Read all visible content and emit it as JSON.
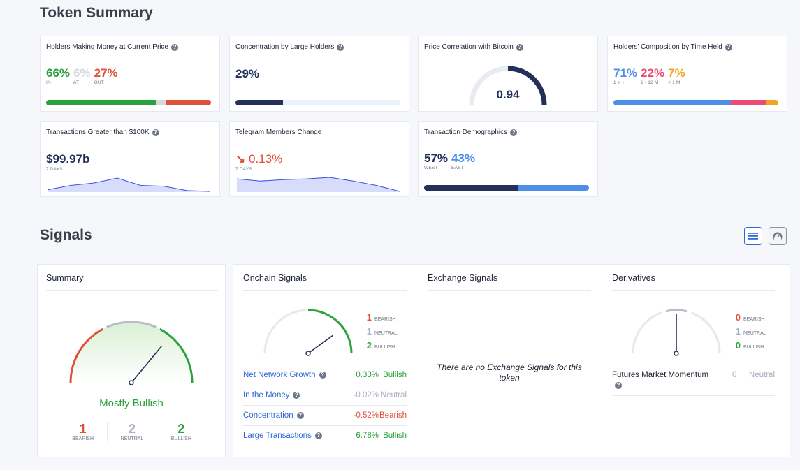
{
  "token_summary": {
    "heading": "Token Summary",
    "holders_money": {
      "title": "Holders Making Money at Current Price",
      "in_value": "66%",
      "in_label": "IN",
      "at_value": "6%",
      "at_label": "AT",
      "out_value": "27%",
      "out_label": "OUT",
      "bar": [
        0.66,
        0.06,
        0.27
      ]
    },
    "concentration": {
      "title": "Concentration by Large Holders",
      "value": "29%",
      "fill": 0.29
    },
    "btc_correlation": {
      "title": "Price Correlation with Bitcoin",
      "value": "0.94",
      "fill": 0.94
    },
    "composition": {
      "title": "Holders' Composition by Time Held",
      "long_value": "71%",
      "long_label": "1 Y +",
      "mid_value": "22%",
      "mid_label": "1 - 12 M",
      "short_value": "7%",
      "short_label": "< 1 M",
      "bar": [
        0.71,
        0.22,
        0.07
      ]
    },
    "large_tx": {
      "title": "Transactions Greater than $100K",
      "value": "$99.97b",
      "period": "7 DAYS",
      "trend": [
        0.15,
        0.45,
        0.62,
        0.95,
        0.45,
        0.4,
        0.1,
        0.05
      ]
    },
    "telegram": {
      "title": "Telegram Members Change",
      "arrow": "↘",
      "value": "0.13%",
      "period": "7 DAYS",
      "trend": [
        0.9,
        0.75,
        0.85,
        0.9,
        1.0,
        0.75,
        0.45,
        0.05
      ]
    },
    "demographics": {
      "title": "Transaction Demographics",
      "west_value": "57%",
      "west_label": "WEST",
      "east_value": "43%",
      "east_label": "EAST",
      "bar": [
        0.57,
        0.43
      ]
    }
  },
  "signals": {
    "heading": "Signals",
    "view_list_icon": "list-icon",
    "view_gauge_icon": "gauge-icon",
    "summary": {
      "title": "Summary",
      "verdict": "Mostly Bullish",
      "bearish": "1",
      "bearish_label": "BEARISH",
      "neutral": "2",
      "neutral_label": "NEUTRAL",
      "bullish": "2",
      "bullish_label": "BULLISH",
      "needle": 0.72
    },
    "onchain": {
      "title": "Onchain Signals",
      "bearish": "1",
      "bearish_label": "BEARISH",
      "neutral": "1",
      "neutral_label": "NEUTRAL",
      "bullish": "2",
      "bullish_label": "BULLISH",
      "needle": 0.8,
      "rows": [
        {
          "name": "Net Network Growth",
          "pct": "0.33%",
          "label": "Bullish",
          "status": "bullish"
        },
        {
          "name": "In the Money",
          "pct": "-0.02%",
          "label": "Neutral",
          "status": "neutral"
        },
        {
          "name": "Concentration",
          "pct": "-0.52%",
          "label": "Bearish",
          "status": "bearish"
        },
        {
          "name": "Large Transactions",
          "pct": "6.78%",
          "label": "Bullish",
          "status": "bullish"
        }
      ]
    },
    "exchange": {
      "title": "Exchange Signals",
      "empty_text": "There are no Exchange Signals for this token"
    },
    "derivatives": {
      "title": "Derivatives",
      "bearish": "0",
      "bearish_label": "BEARISH",
      "neutral": "1",
      "neutral_label": "NEUTRAL",
      "bullish": "0",
      "bullish_label": "BULLISH",
      "needle": 0.5,
      "row_name": "Futures Market Momentum",
      "row_value": "0",
      "row_label": "Neutral"
    }
  },
  "colors": {
    "green": "#2aa13a",
    "red": "#e05039",
    "neutral_gray": "#d5d8de",
    "navy": "#23315a",
    "blue": "#4d8fe8",
    "pink": "#ea4c77",
    "orange": "#f3a221",
    "light_blue_track": "#e9f1fc",
    "link_blue": "#2f66d6",
    "area_blue": "#d7dcfa",
    "line_blue": "#3b4ee8"
  }
}
